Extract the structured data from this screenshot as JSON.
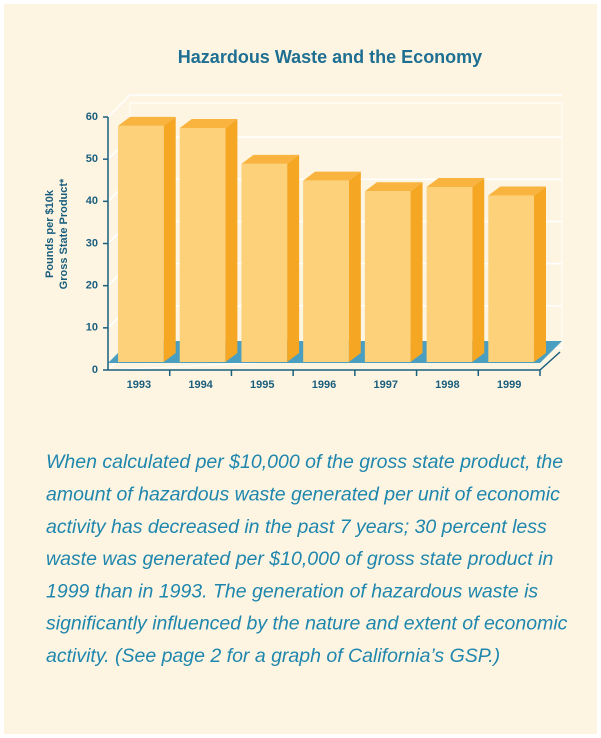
{
  "chart_data": {
    "type": "bar3d",
    "title": "Hazardous Waste and the Economy",
    "ylabel": [
      "Pounds per $10k",
      "Gross State Product*"
    ],
    "categories": [
      "1993",
      "1994",
      "1995",
      "1996",
      "1997",
      "1998",
      "1999"
    ],
    "values": [
      56,
      55.5,
      47,
      43,
      40.5,
      41.5,
      39.5
    ],
    "color": "#fdd07a",
    "ylim": [
      0,
      60
    ],
    "yticks": [
      0,
      10,
      20,
      30,
      40,
      50,
      60
    ],
    "grid": true
  },
  "caption_lines": [
    "When calculated per $10,000 of the gross state product, the",
    "amount of hazardous waste generated per unit of economic",
    "activity has decreased in the past 7 years; 30 percent less",
    "waste was generated per $10,000 of gross state product in",
    "1999 than in 1993. The generation of hazardous waste is",
    "significantly influenced by the nature and extent of economic",
    "activity. (See page 2 for a graph of California’s GSP.)"
  ]
}
